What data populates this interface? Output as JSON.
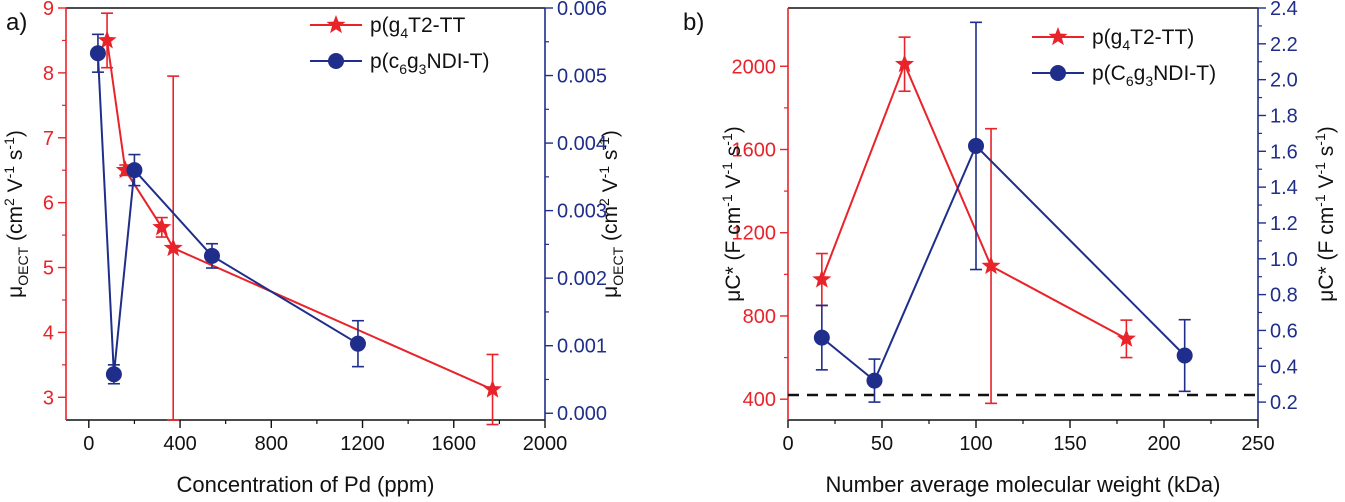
{
  "colors": {
    "red": "#e8232a",
    "blue": "#1f2e8a",
    "black": "#111111"
  },
  "panels": [
    {
      "label": "a)",
      "xaxis": {
        "title": "Concentration of Pd (ppm)",
        "min": -100,
        "max": 2000,
        "ticks": [
          "0",
          "400",
          "800",
          "1200",
          "1600",
          "2000"
        ]
      },
      "yleft": {
        "title_main": "μ",
        "title_sub": "OECT",
        "title_rest": " (cm",
        "title_sup1": "2",
        "title_mid": " V",
        "title_sup2": "-1",
        "title_mid2": " s",
        "title_sup3": "-1",
        "title_end": ")",
        "min": 2.65,
        "max": 9.0,
        "ticks": [
          "3",
          "4",
          "5",
          "6",
          "7",
          "8",
          "9"
        ]
      },
      "yright": {
        "title_main": "μ",
        "title_sub": "OECT",
        "title_rest": " (cm",
        "title_sup1": "2",
        "title_mid": " V",
        "title_sup2": "-1",
        "title_mid2": " s",
        "title_sup3": "-1",
        "title_end": ")",
        "min": -0.0001,
        "max": 0.006,
        "ticks": [
          "0.000",
          "0.001",
          "0.002",
          "0.003",
          "0.004",
          "0.005",
          "0.006"
        ]
      },
      "legend": [
        {
          "pre": "p(g",
          "sub": "4",
          "post": "T2-TT",
          "mark": "star",
          "color": "red"
        },
        {
          "pre": "p(c",
          "sub": "6",
          "mid": "g",
          "sub2": "3",
          "post": "NDI-T)",
          "mark": "circle",
          "color": "blue"
        }
      ]
    },
    {
      "label": "b)",
      "xaxis": {
        "title": "Number average molecular weight (kDa)",
        "min": 0,
        "max": 250,
        "ticks": [
          "0",
          "50",
          "100",
          "150",
          "200",
          "250"
        ]
      },
      "yleft": {
        "title_main": "μC* (F cm",
        "title_sup1": "-1",
        "title_mid": " V",
        "title_sup2": "-1",
        "title_mid2": " s",
        "title_sup3": "-1",
        "title_end": ")",
        "min": 300,
        "max": 2280,
        "ticks": [
          "400",
          "800",
          "1200",
          "1600",
          "2000"
        ]
      },
      "yright": {
        "title_main": "μC* (F cm",
        "title_sup1": "-1",
        "title_mid": " V",
        "title_sup2": "-1",
        "title_mid2": " s",
        "title_sup3": "-1",
        "title_end": ")",
        "min": 0.1,
        "max": 2.4,
        "ticks": [
          "0.2",
          "0.4",
          "0.6",
          "0.8",
          "1.0",
          "1.2",
          "1.4",
          "1.6",
          "1.8",
          "2.0",
          "2.2",
          "2.4"
        ]
      },
      "legend": [
        {
          "pre": "p(g",
          "sub": "4",
          "post": "T2-TT)",
          "mark": "star",
          "color": "red"
        },
        {
          "pre": "p(C",
          "sub": "6",
          "mid": "g",
          "sub2": "3",
          "post": "NDI-T)",
          "mark": "circle",
          "color": "blue"
        }
      ]
    }
  ],
  "chart_data": [
    {
      "type": "line",
      "title": "a)",
      "xlabel": "Concentration of Pd (ppm)",
      "ylabel_left": "μOECT (cm2 V-1 s-1)",
      "ylabel_right": "μOECT (cm2 V-1 s-1)",
      "xlim": [
        -100,
        2000
      ],
      "ylim_left": [
        2.65,
        9.0
      ],
      "ylim_right": [
        -0.0001,
        0.006
      ],
      "series": [
        {
          "name": "p(g4T2-TT)",
          "axis": "left",
          "marker": "star",
          "color": "red",
          "x": [
            80,
            160,
            320,
            370,
            1770
          ],
          "y": [
            8.5,
            6.5,
            5.62,
            5.3,
            3.12
          ],
          "err": [
            0.42,
            0.08,
            0.15,
            2.65,
            0.54
          ]
        },
        {
          "name": "p(c6g3NDI-T)",
          "axis": "right",
          "marker": "circle",
          "color": "blue",
          "x": [
            40,
            110,
            200,
            540,
            1180
          ],
          "y": [
            0.00533,
            0.000577,
            0.0036,
            0.00233,
            0.00103
          ],
          "err": [
            0.00028,
            0.00014,
            0.00023,
            0.00018,
            0.00034
          ]
        }
      ]
    },
    {
      "type": "line",
      "title": "b)",
      "xlabel": "Number average molecular weight (kDa)",
      "ylabel_left": "μC* (F cm-1 V-1 s-1)",
      "ylabel_right": "μC* (F cm-1 V-1 s-1)",
      "xlim": [
        0,
        250
      ],
      "ylim_left": [
        300,
        2280
      ],
      "ylim_right": [
        0.1,
        2.4
      ],
      "reference_line": {
        "axis": "left",
        "y": 420,
        "style": "dashed"
      },
      "series": [
        {
          "name": "p(g4T2-TT)",
          "axis": "left",
          "marker": "star",
          "color": "red",
          "x": [
            18,
            62,
            108,
            180
          ],
          "y": [
            975,
            2010,
            1040,
            690
          ],
          "err": [
            125,
            130,
            660,
            90
          ]
        },
        {
          "name": "p(C6g3NDI-T)",
          "axis": "right",
          "marker": "circle",
          "color": "blue",
          "x": [
            18,
            46,
            100,
            211
          ],
          "y": [
            0.56,
            0.32,
            1.63,
            0.46
          ],
          "err": [
            0.18,
            0.12,
            0.69,
            0.2
          ]
        }
      ]
    }
  ]
}
